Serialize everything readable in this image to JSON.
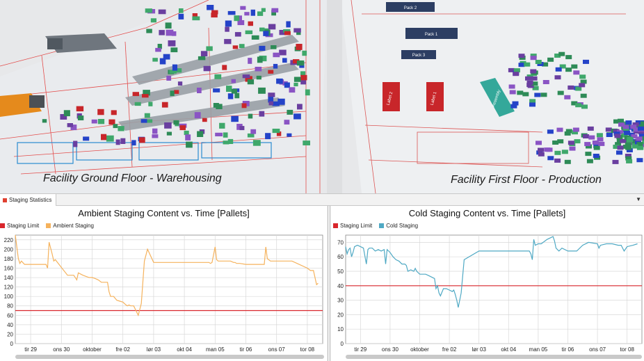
{
  "scene": {
    "ground_floor_label": "Facility Ground Floor - Warehousing",
    "first_floor_label": "Facility First Floor - Production",
    "block_labels": [
      "Pack 2",
      "Pack 1",
      "Pack 3",
      "Label 2",
      "Label 1",
      "Assembly"
    ]
  },
  "tab": {
    "label": "Staging Statistics"
  },
  "charts_x_ticks": [
    "tir 29",
    "ons 30",
    "oktober",
    "fre 02",
    "lør 03",
    "okt 04",
    "man 05",
    "tir 06",
    "ons 07",
    "tor 08"
  ],
  "chart_data": [
    {
      "type": "line",
      "title": "Ambient Staging Content vs. Time [Pallets]",
      "xlabel": "",
      "ylabel": "",
      "x_categories": [
        "tir 29",
        "ons 30",
        "oktober",
        "fre 02",
        "lør 03",
        "okt 04",
        "man 05",
        "tir 06",
        "ons 07",
        "tor 08"
      ],
      "xlim": [
        0,
        10
      ],
      "ylim": [
        0,
        230
      ],
      "y_ticks": [
        0,
        20,
        40,
        60,
        80,
        100,
        120,
        140,
        160,
        180,
        200,
        220
      ],
      "grid": true,
      "legend_position": "top-left",
      "series": [
        {
          "name": "Staging Limit",
          "color": "#d9262c",
          "x": [
            0,
            10
          ],
          "y": [
            70,
            70
          ]
        },
        {
          "name": "Ambient Staging",
          "color": "#f5b25c",
          "x": [
            0,
            0.1,
            0.15,
            0.2,
            0.3,
            1.0,
            1.05,
            1.1,
            1.2,
            1.25,
            1.3,
            1.7,
            1.8,
            1.9,
            2.0,
            2.05,
            2.2,
            2.4,
            2.5,
            2.6,
            2.7,
            2.8,
            2.9,
            3.0,
            3.05,
            3.1,
            3.2,
            3.3,
            3.4,
            3.5,
            3.6,
            3.65,
            3.7,
            3.75,
            3.8,
            3.85,
            4.0,
            4.1,
            4.2,
            4.3,
            4.5,
            5.0,
            5.5,
            6.0,
            6.3,
            6.35,
            6.4,
            6.5,
            6.55,
            6.6,
            7.0,
            7.1,
            7.15,
            7.2,
            7.3,
            7.5,
            8.0,
            8.1,
            8.15,
            8.2,
            8.3,
            8.5,
            8.8,
            9.0,
            9.5,
            9.6,
            9.7,
            9.8,
            9.85
          ],
          "y": [
            230,
            180,
            170,
            175,
            168,
            168,
            160,
            215,
            190,
            175,
            178,
            145,
            145,
            145,
            135,
            150,
            145,
            140,
            140,
            138,
            135,
            130,
            130,
            130,
            110,
            100,
            100,
            92,
            90,
            88,
            82,
            80,
            82,
            80,
            80,
            80,
            60,
            85,
            175,
            200,
            172,
            172,
            172,
            172,
            172,
            170,
            172,
            205,
            178,
            175,
            175,
            172,
            172,
            170,
            170,
            168,
            168,
            168,
            205,
            180,
            175,
            175,
            175,
            175,
            160,
            155,
            155,
            125,
            128
          ]
        }
      ]
    },
    {
      "type": "line",
      "title": "Cold Staging Content vs. Time [Pallets]",
      "xlabel": "",
      "ylabel": "",
      "x_categories": [
        "tir 29",
        "ons 30",
        "oktober",
        "fre 02",
        "lør 03",
        "okt 04",
        "man 05",
        "tir 06",
        "ons 07",
        "tor 08"
      ],
      "xlim": [
        0,
        10
      ],
      "ylim": [
        0,
        75
      ],
      "y_ticks": [
        0,
        10,
        20,
        30,
        40,
        50,
        60,
        70
      ],
      "grid": true,
      "legend_position": "top-left",
      "series": [
        {
          "name": "Staging Limit",
          "color": "#d9262c",
          "x": [
            0,
            10
          ],
          "y": [
            40,
            40
          ]
        },
        {
          "name": "Cold Staging",
          "color": "#4fa9c4",
          "x": [
            0,
            0.05,
            0.1,
            0.15,
            0.2,
            0.25,
            0.3,
            0.4,
            0.5,
            0.6,
            0.7,
            0.75,
            0.8,
            0.9,
            1.0,
            1.1,
            1.2,
            1.3,
            1.35,
            1.4,
            1.5,
            1.6,
            1.7,
            1.8,
            1.9,
            2.0,
            2.05,
            2.1,
            2.2,
            2.3,
            2.35,
            2.4,
            2.5,
            2.6,
            2.7,
            2.8,
            3.0,
            3.05,
            3.1,
            3.15,
            3.2,
            3.3,
            3.4,
            3.5,
            3.6,
            3.65,
            3.7,
            3.75,
            3.8,
            3.9,
            4.0,
            4.5,
            5.0,
            5.5,
            6.0,
            6.2,
            6.25,
            6.3,
            6.35,
            6.4,
            6.5,
            6.6,
            6.8,
            7.0,
            7.05,
            7.1,
            7.2,
            7.3,
            7.5,
            7.8,
            8.0,
            8.2,
            8.5,
            8.55,
            8.6,
            8.8,
            9.0,
            9.2,
            9.3,
            9.4,
            9.5,
            9.7,
            9.85
          ],
          "y": [
            67,
            62,
            65,
            66,
            60,
            63,
            67,
            68,
            67,
            66,
            55,
            65,
            66,
            66,
            64,
            65,
            64,
            65,
            55,
            65,
            63,
            60,
            58,
            57,
            55,
            55,
            54,
            50,
            51,
            50,
            52,
            50,
            48,
            48,
            48,
            47,
            45,
            38,
            40,
            35,
            33,
            38,
            38,
            37,
            36,
            37,
            34,
            30,
            25,
            35,
            58,
            64,
            64,
            64,
            64,
            64,
            62,
            58,
            72,
            68,
            69,
            69,
            72,
            74,
            71,
            66,
            64,
            66,
            64,
            64,
            68,
            70,
            69,
            66,
            68,
            69,
            69,
            68,
            68,
            64,
            67,
            68,
            69
          ]
        }
      ]
    }
  ]
}
